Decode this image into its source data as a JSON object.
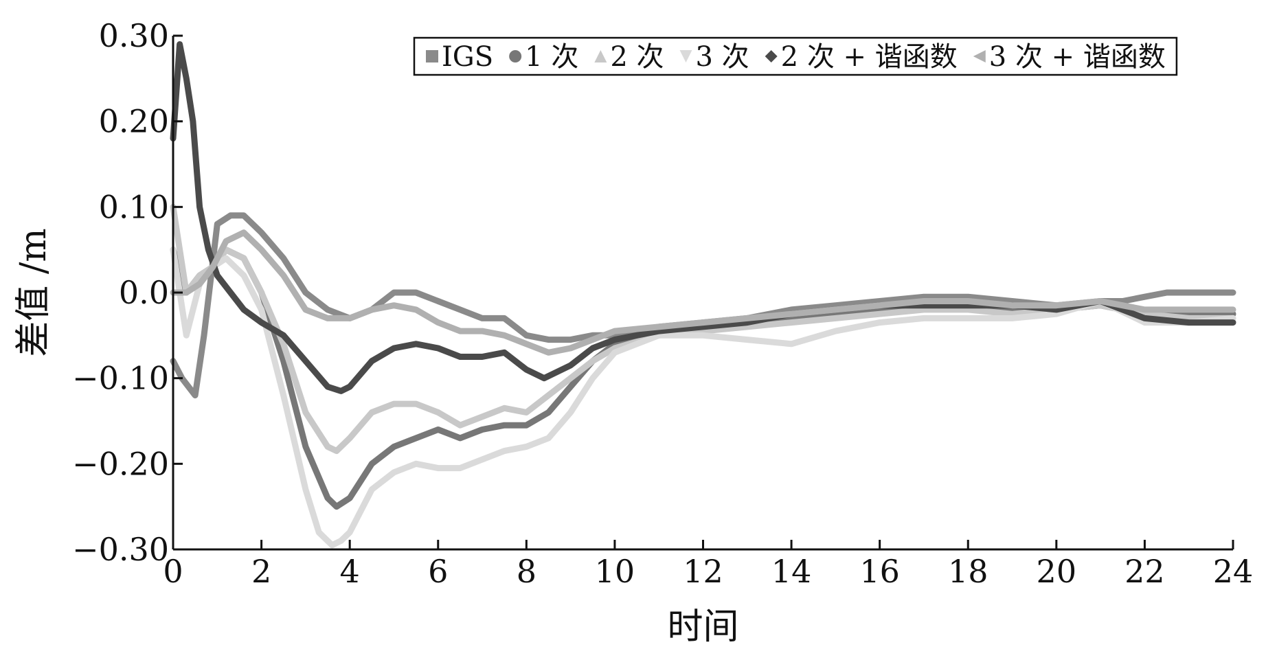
{
  "chart_data": {
    "type": "line",
    "title": "",
    "xlabel": "时间",
    "ylabel": "差值 /m",
    "xlim": [
      0,
      24
    ],
    "ylim": [
      -0.3,
      0.3
    ],
    "x_ticks": [
      0,
      2,
      4,
      6,
      8,
      10,
      12,
      14,
      16,
      18,
      20,
      22,
      24
    ],
    "x_tick_labels": [
      "0",
      "2",
      "4",
      "6",
      "8",
      "10",
      "12",
      "14",
      "16",
      "18",
      "20",
      "22",
      "24"
    ],
    "y_ticks": [
      0.3,
      0.2,
      0.1,
      0.0,
      -0.1,
      -0.2,
      -0.3
    ],
    "y_tick_labels": [
      "0.30",
      "0.20",
      "0.10",
      "0.0",
      "−0.10",
      "−0.20",
      "−0.30"
    ],
    "grid": false,
    "legend_position": "top-right",
    "series": [
      {
        "name": "IGS",
        "marker": "square",
        "color": "#8a8a8a",
        "x": [
          0,
          0.2,
          0.5,
          0.7,
          1.0,
          1.3,
          1.6,
          2.0,
          2.5,
          3.0,
          3.5,
          4.0,
          4.5,
          5.0,
          5.5,
          6.0,
          6.5,
          7.0,
          7.5,
          8.0,
          8.5,
          9.0,
          9.5,
          10.0,
          11,
          12,
          13,
          14,
          15,
          16,
          17,
          18,
          19,
          20,
          21,
          21.5,
          22,
          22.5,
          23,
          24
        ],
        "y": [
          -0.08,
          -0.1,
          -0.12,
          -0.05,
          0.08,
          0.09,
          0.09,
          0.07,
          0.04,
          0.0,
          -0.02,
          -0.03,
          -0.02,
          0.0,
          0.0,
          -0.01,
          -0.02,
          -0.03,
          -0.03,
          -0.05,
          -0.055,
          -0.055,
          -0.05,
          -0.05,
          -0.04,
          -0.035,
          -0.03,
          -0.02,
          -0.015,
          -0.01,
          -0.005,
          -0.005,
          -0.01,
          -0.015,
          -0.01,
          -0.01,
          -0.005,
          0.0,
          0.0,
          0.0
        ]
      },
      {
        "name": "1 次",
        "marker": "circle",
        "color": "#777777",
        "x": [
          0,
          0.3,
          0.6,
          0.9,
          1.2,
          1.6,
          2.0,
          2.5,
          3.0,
          3.5,
          3.7,
          4.0,
          4.5,
          5.0,
          5.5,
          6.0,
          6.5,
          7.0,
          7.5,
          8.0,
          8.5,
          9.0,
          9.5,
          10.0,
          11,
          12,
          13,
          14,
          15,
          16,
          17,
          18,
          19,
          20,
          21,
          22,
          23,
          24
        ],
        "y": [
          0.05,
          0.0,
          0.02,
          0.03,
          0.05,
          0.04,
          0.0,
          -0.08,
          -0.18,
          -0.24,
          -0.25,
          -0.24,
          -0.2,
          -0.18,
          -0.17,
          -0.16,
          -0.17,
          -0.16,
          -0.155,
          -0.155,
          -0.14,
          -0.11,
          -0.08,
          -0.06,
          -0.045,
          -0.04,
          -0.035,
          -0.03,
          -0.025,
          -0.02,
          -0.015,
          -0.015,
          -0.02,
          -0.02,
          -0.015,
          -0.025,
          -0.025,
          -0.025
        ]
      },
      {
        "name": "2 次",
        "marker": "triangle-up",
        "color": "#c8c8c8",
        "x": [
          0,
          0.3,
          0.6,
          0.9,
          1.2,
          1.6,
          2.0,
          2.5,
          3.0,
          3.5,
          3.7,
          4.0,
          4.5,
          5.0,
          5.5,
          6.0,
          6.5,
          7.0,
          7.5,
          8.0,
          8.5,
          9.0,
          9.5,
          10.0,
          11,
          12,
          13,
          14,
          15,
          16,
          17,
          18,
          19,
          20,
          21,
          22,
          23,
          24
        ],
        "y": [
          0.1,
          0.0,
          0.02,
          0.03,
          0.05,
          0.04,
          0.0,
          -0.06,
          -0.14,
          -0.18,
          -0.185,
          -0.17,
          -0.14,
          -0.13,
          -0.13,
          -0.14,
          -0.155,
          -0.145,
          -0.135,
          -0.14,
          -0.12,
          -0.1,
          -0.08,
          -0.065,
          -0.05,
          -0.045,
          -0.04,
          -0.035,
          -0.03,
          -0.025,
          -0.02,
          -0.02,
          -0.025,
          -0.02,
          -0.015,
          -0.025,
          -0.03,
          -0.03
        ]
      },
      {
        "name": "3 次",
        "marker": "triangle-down",
        "color": "#dadada",
        "x": [
          0,
          0.3,
          0.6,
          0.9,
          1.2,
          1.6,
          2.0,
          2.5,
          3.0,
          3.3,
          3.6,
          3.8,
          4.0,
          4.5,
          5.0,
          5.5,
          6.0,
          6.5,
          7.0,
          7.5,
          8.0,
          8.5,
          9.0,
          9.5,
          10.0,
          11,
          12,
          13,
          14,
          15,
          16,
          17,
          18,
          19,
          20,
          21,
          22,
          23,
          24
        ],
        "y": [
          0.05,
          -0.05,
          0.01,
          0.03,
          0.04,
          0.02,
          -0.02,
          -0.12,
          -0.23,
          -0.28,
          -0.295,
          -0.29,
          -0.28,
          -0.23,
          -0.21,
          -0.2,
          -0.205,
          -0.205,
          -0.195,
          -0.185,
          -0.18,
          -0.17,
          -0.14,
          -0.1,
          -0.07,
          -0.05,
          -0.05,
          -0.055,
          -0.06,
          -0.045,
          -0.035,
          -0.03,
          -0.03,
          -0.03,
          -0.025,
          -0.01,
          -0.035,
          -0.035,
          -0.03
        ]
      },
      {
        "name": "2 次 + 谐函数",
        "marker": "diamond",
        "color": "#4a4a4a",
        "x": [
          0,
          0.15,
          0.3,
          0.45,
          0.6,
          0.8,
          1.0,
          1.3,
          1.6,
          2.0,
          2.5,
          3.0,
          3.5,
          3.8,
          4.0,
          4.5,
          5.0,
          5.5,
          6.0,
          6.5,
          7.0,
          7.5,
          8.0,
          8.4,
          9.0,
          9.5,
          10.0,
          11,
          12,
          13,
          14,
          15,
          16,
          17,
          18,
          19,
          20,
          21,
          22,
          23,
          24
        ],
        "y": [
          0.18,
          0.29,
          0.25,
          0.2,
          0.1,
          0.05,
          0.02,
          0.0,
          -0.02,
          -0.035,
          -0.05,
          -0.08,
          -0.11,
          -0.115,
          -0.11,
          -0.08,
          -0.065,
          -0.06,
          -0.065,
          -0.075,
          -0.075,
          -0.07,
          -0.09,
          -0.1,
          -0.085,
          -0.065,
          -0.055,
          -0.045,
          -0.04,
          -0.035,
          -0.025,
          -0.02,
          -0.015,
          -0.015,
          -0.015,
          -0.015,
          -0.02,
          -0.01,
          -0.03,
          -0.035,
          -0.035
        ]
      },
      {
        "name": "3 次 + 谐函数",
        "marker": "triangle-left",
        "color": "#b0b0b0",
        "x": [
          0,
          0.3,
          0.6,
          0.9,
          1.2,
          1.6,
          2.0,
          2.5,
          3.0,
          3.5,
          4.0,
          4.5,
          5.0,
          5.5,
          6.0,
          6.5,
          7.0,
          7.5,
          8.0,
          8.5,
          9.0,
          9.5,
          10.0,
          11,
          12,
          13,
          14,
          15,
          16,
          17,
          18,
          19,
          20,
          21,
          22,
          23,
          24
        ],
        "y": [
          0.0,
          0.0,
          0.01,
          0.03,
          0.06,
          0.07,
          0.05,
          0.02,
          -0.02,
          -0.03,
          -0.03,
          -0.02,
          -0.015,
          -0.02,
          -0.035,
          -0.045,
          -0.045,
          -0.05,
          -0.06,
          -0.07,
          -0.065,
          -0.055,
          -0.045,
          -0.04,
          -0.035,
          -0.03,
          -0.025,
          -0.02,
          -0.015,
          -0.01,
          -0.01,
          -0.015,
          -0.015,
          -0.01,
          -0.02,
          -0.02,
          -0.02
        ]
      }
    ]
  }
}
